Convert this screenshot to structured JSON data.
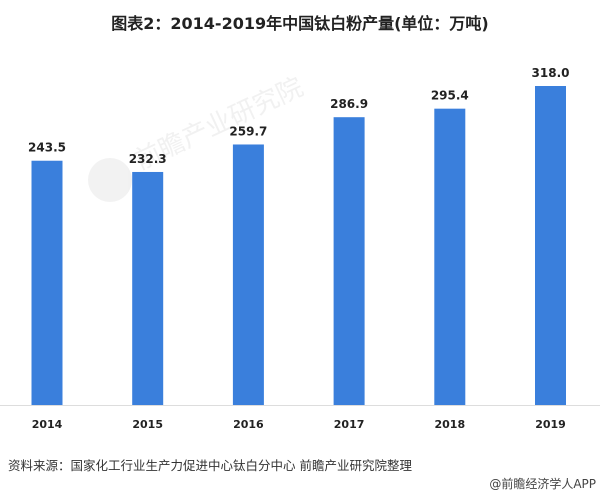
{
  "chart_data": {
    "type": "bar",
    "title": "图表2：2014-2019年中国钛白粉产量(单位：万吨)",
    "categories": [
      "2014",
      "2015",
      "2016",
      "2017",
      "2018",
      "2019"
    ],
    "values": [
      243.5,
      232.3,
      259.7,
      286.9,
      295.4,
      318.0
    ],
    "value_labels": [
      "243.5",
      "232.3",
      "259.7",
      "286.9",
      "295.4",
      "318.0"
    ],
    "ylim": [
      0,
      318
    ],
    "grid": false,
    "bar_color": "#3a7fdc",
    "watermark": "前瞻产业研究院"
  },
  "footer": {
    "source": "资料来源：国家化工行业生产力促进中心钛白分中心 前瞻产业研究院整理",
    "credit": "@前瞻经济学人APP"
  }
}
